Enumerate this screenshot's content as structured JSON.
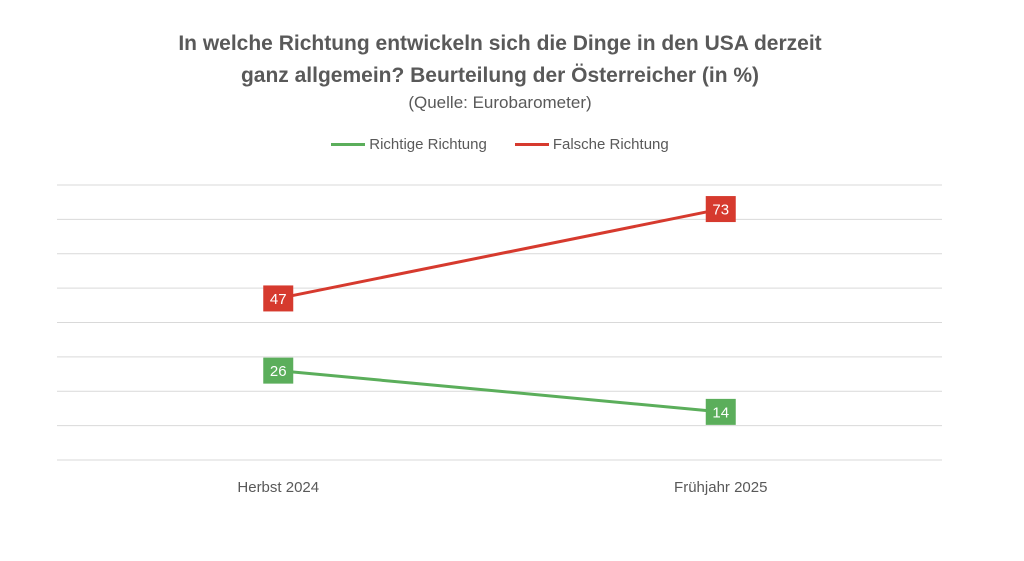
{
  "chart_data": {
    "type": "line",
    "title_line1": "In welche Richtung entwickeln sich die Dinge in den USA derzeit",
    "title_line2": "ganz allgemein? Beurteilung der Österreicher (in %)",
    "subtitle": "(Quelle: Eurobarometer)",
    "categories": [
      "Herbst 2024",
      "Frühjahr 2025"
    ],
    "series": [
      {
        "name": "Richtige Richtung",
        "values": [
          26,
          14
        ],
        "color": "#5BAE5B"
      },
      {
        "name": "Falsche Richtung",
        "values": [
          47,
          73
        ],
        "color": "#D63A2E"
      }
    ],
    "ylim": [
      0,
      80
    ],
    "grid": true,
    "legend_position": "top"
  }
}
